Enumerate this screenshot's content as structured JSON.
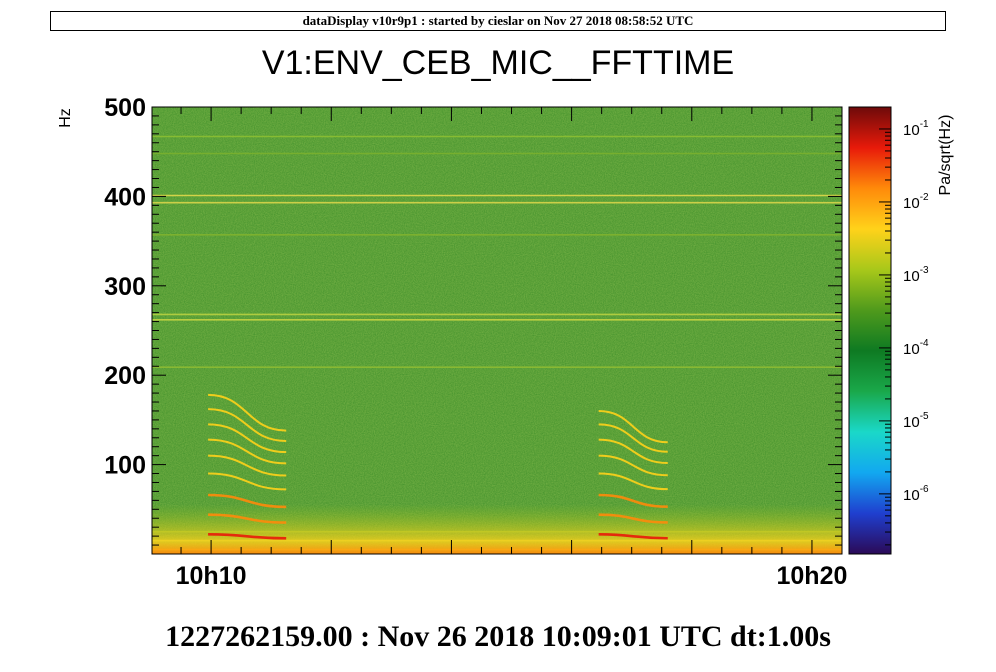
{
  "header": {
    "banner": "dataDisplay v10r9p1 : started by cieslar on Nov 27 2018 08:58:52 UTC",
    "footer": "1227262159.00 : Nov 26 2018 10:09:01 UTC dt:1.00s"
  },
  "chart_data": {
    "type": "heatmap",
    "title": "V1:ENV_CEB_MIC__FFTTIME",
    "ylabel": "Hz",
    "zlabel": "Pa/sqrt(Hz)",
    "ylim": [
      0,
      500
    ],
    "y_ticks": [
      100,
      200,
      300,
      400,
      500
    ],
    "xlim_minutes": [
      9.0167,
      20.5
    ],
    "x_ticks": [
      {
        "minute": 10,
        "label": "10h10"
      },
      {
        "minute": 20,
        "label": "10h20"
      }
    ],
    "zscale": "log",
    "zlim": [
      1.5e-07,
      0.2
    ],
    "z_ticks": [
      {
        "base": "10",
        "exp": "-1",
        "value": 0.1
      },
      {
        "base": "10",
        "exp": "-2",
        "value": 0.01
      },
      {
        "base": "10",
        "exp": "-3",
        "value": 0.001
      },
      {
        "base": "10",
        "exp": "-4",
        "value": 0.0001
      },
      {
        "base": "10",
        "exp": "-5",
        "value": 1e-05
      },
      {
        "base": "10",
        "exp": "-6",
        "value": 1e-06
      }
    ],
    "colormap": [
      "#2b0a57",
      "#1f3fcf",
      "#12a8f0",
      "#1ad8c8",
      "#1aa84a",
      "#0e7a22",
      "#4f9a1c",
      "#a8c81a",
      "#ffd21a",
      "#ff8a0a",
      "#e81a0a",
      "#6e0a0a"
    ],
    "background_color": "#3e8f2a",
    "lines": [
      {
        "freq": 467,
        "color": "#8cbf32"
      },
      {
        "freq": 448,
        "color": "#7ab02e"
      },
      {
        "freq": 401,
        "color": "#e0d84a"
      },
      {
        "freq": 393,
        "color": "#d8d44a"
      },
      {
        "freq": 357,
        "color": "#7fb22f"
      },
      {
        "freq": 268,
        "color": "#b8d040"
      },
      {
        "freq": 262,
        "color": "#c4d442"
      },
      {
        "freq": 209,
        "color": "#8dbb33"
      },
      {
        "freq": 25,
        "color": "#8cbf32"
      },
      {
        "freq": 15,
        "color": "#c2cf3a"
      },
      {
        "freq": 5,
        "color": "#e8b82a"
      }
    ],
    "bursts": [
      {
        "t_start": 9.95,
        "t_end": 11.25,
        "base_freqs": [
          22,
          44,
          66,
          90,
          110,
          128,
          145,
          162,
          178
        ],
        "drop": 40
      },
      {
        "t_start": 16.45,
        "t_end": 17.6,
        "base_freqs": [
          22,
          44,
          66,
          90,
          110,
          128,
          145,
          160
        ],
        "drop": 35
      }
    ]
  }
}
